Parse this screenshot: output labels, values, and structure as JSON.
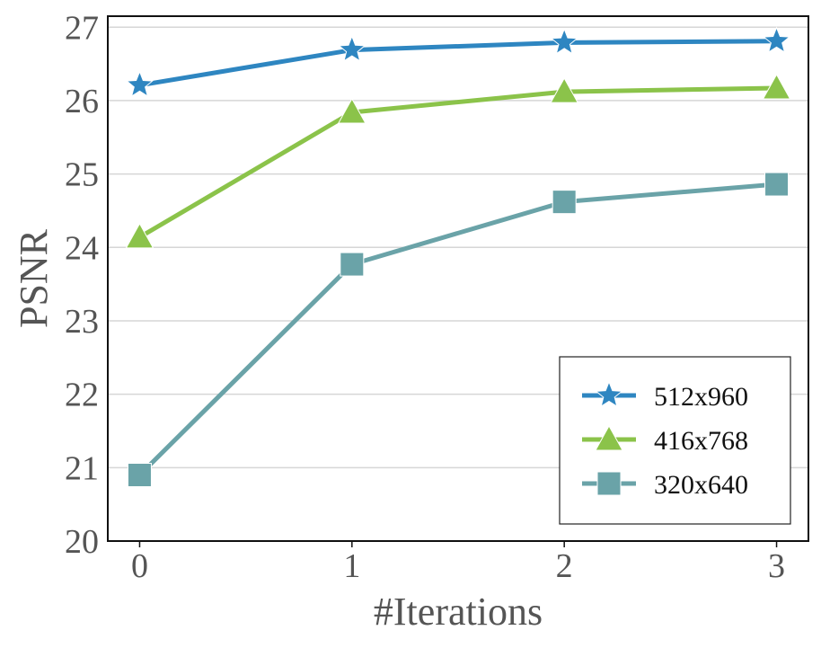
{
  "chart_data": {
    "type": "line",
    "xlabel": "#Iterations",
    "ylabel": "PSNR",
    "x": [
      0,
      1,
      2,
      3
    ],
    "xticks": [
      "0",
      "1",
      "2",
      "3"
    ],
    "yticks": [
      "20",
      "21",
      "22",
      "23",
      "24",
      "25",
      "26",
      "27"
    ],
    "xlim": [
      -0.15,
      3.15
    ],
    "ylim": [
      20,
      27.15
    ],
    "grid": "horizontal",
    "legend_position": "bottom-right",
    "series": [
      {
        "name": "512x960",
        "color": "#2e86c1",
        "marker": "star",
        "values": [
          26.21,
          26.69,
          26.79,
          26.81
        ]
      },
      {
        "name": "416x768",
        "color": "#8bc34a",
        "marker": "triangle",
        "values": [
          24.14,
          25.84,
          26.12,
          26.17
        ]
      },
      {
        "name": "320x640",
        "color": "#6aa3a8",
        "marker": "square",
        "values": [
          20.9,
          23.77,
          24.62,
          24.86
        ]
      }
    ]
  }
}
